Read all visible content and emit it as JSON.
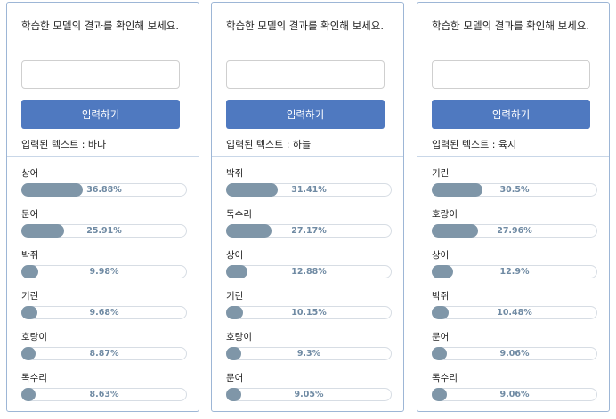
{
  "panels": [
    {
      "instruction": "학습한 모델의 결과를 확인해 보세요.",
      "input_value": "",
      "button_label": "입력하기",
      "result_text": "입력된 텍스트 : 바다",
      "items": [
        {
          "label": "상어",
          "percent": 36.88,
          "percent_text": "36.88%"
        },
        {
          "label": "문어",
          "percent": 25.91,
          "percent_text": "25.91%"
        },
        {
          "label": "박쥐",
          "percent": 9.98,
          "percent_text": "9.98%"
        },
        {
          "label": "기린",
          "percent": 9.68,
          "percent_text": "9.68%"
        },
        {
          "label": "호랑이",
          "percent": 8.87,
          "percent_text": "8.87%"
        },
        {
          "label": "독수리",
          "percent": 8.63,
          "percent_text": "8.63%"
        }
      ]
    },
    {
      "instruction": "학습한 모델의 결과를 확인해 보세요.",
      "input_value": "",
      "button_label": "입력하기",
      "result_text": "입력된 텍스트 : 하늘",
      "items": [
        {
          "label": "박쥐",
          "percent": 31.41,
          "percent_text": "31.41%"
        },
        {
          "label": "독수리",
          "percent": 27.17,
          "percent_text": "27.17%"
        },
        {
          "label": "상어",
          "percent": 12.88,
          "percent_text": "12.88%"
        },
        {
          "label": "기린",
          "percent": 10.15,
          "percent_text": "10.15%"
        },
        {
          "label": "호랑이",
          "percent": 9.3,
          "percent_text": "9.3%"
        },
        {
          "label": "문어",
          "percent": 9.05,
          "percent_text": "9.05%"
        }
      ]
    },
    {
      "instruction": "학습한 모델의 결과를 확인해 보세요.",
      "input_value": "",
      "button_label": "입력하기",
      "result_text": "입력된 텍스트 : 육지",
      "items": [
        {
          "label": "기린",
          "percent": 30.5,
          "percent_text": "30.5%"
        },
        {
          "label": "호랑이",
          "percent": 27.96,
          "percent_text": "27.96%"
        },
        {
          "label": "상어",
          "percent": 12.9,
          "percent_text": "12.9%"
        },
        {
          "label": "박쥐",
          "percent": 10.48,
          "percent_text": "10.48%"
        },
        {
          "label": "문어",
          "percent": 9.06,
          "percent_text": "9.06%"
        },
        {
          "label": "독수리",
          "percent": 9.06,
          "percent_text": "9.06%"
        }
      ]
    }
  ],
  "colors": {
    "button": "#4f79c0",
    "bar_fill": "#7f96a8",
    "percent_text": "#6f8aa3",
    "panel_border": "#9db6d6"
  }
}
